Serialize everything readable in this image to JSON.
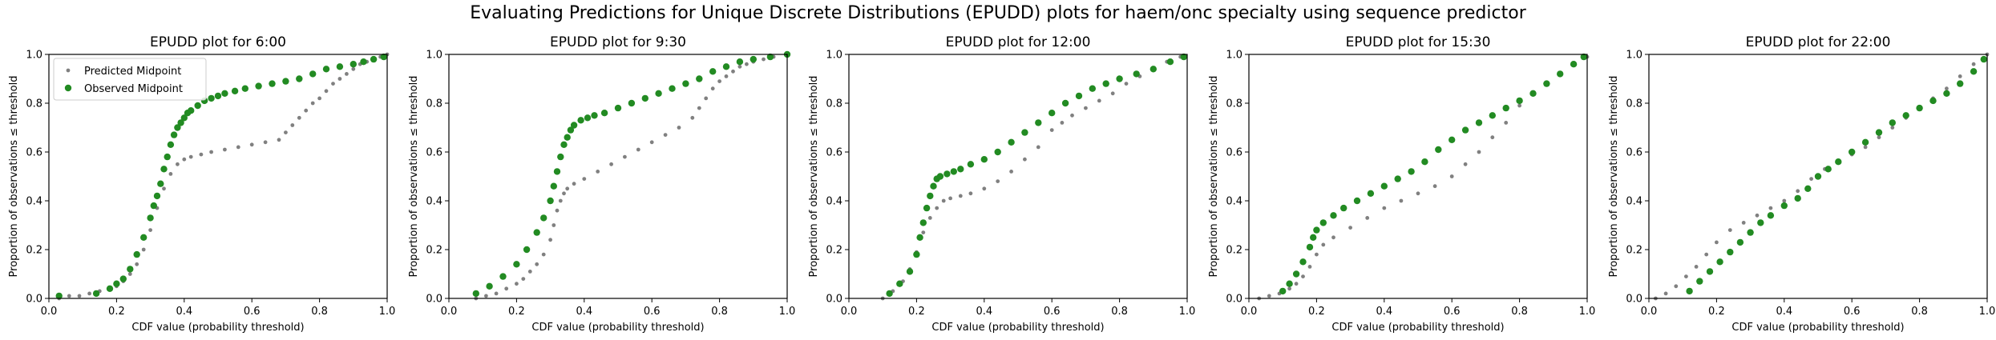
{
  "figure": {
    "suptitle": "Evaluating Predictions for Unique Discrete Distributions (EPUDD) plots for haem/onc specialty using sequence predictor"
  },
  "colors": {
    "predicted": "#808080",
    "observed": "#228B22"
  },
  "chart_data": [
    {
      "type": "scatter",
      "title": "EPUDD plot for 6:00",
      "xlabel": "CDF value (probability threshold)",
      "ylabel": "Proportion of observations ≤ threshold",
      "xlim": [
        0,
        1
      ],
      "ylim": [
        0,
        1
      ],
      "xticks": [
        "0.0",
        "0.2",
        "0.4",
        "0.6",
        "0.8",
        "1.0"
      ],
      "yticks": [
        "0.0",
        "0.2",
        "0.4",
        "0.6",
        "0.8",
        "1.0"
      ],
      "grid": false,
      "legend": {
        "position": "top-left",
        "entries": [
          "Predicted Midpoint",
          "Observed Midpoint"
        ]
      },
      "series": [
        {
          "name": "Predicted Midpoint",
          "marker": "small-dot",
          "x": [
            0.03,
            0.06,
            0.09,
            0.12,
            0.15,
            0.18,
            0.2,
            0.22,
            0.24,
            0.26,
            0.28,
            0.3,
            0.32,
            0.34,
            0.36,
            0.38,
            0.4,
            0.42,
            0.45,
            0.48,
            0.52,
            0.56,
            0.6,
            0.64,
            0.68,
            0.7,
            0.72,
            0.74,
            0.76,
            0.78,
            0.8,
            0.82,
            0.84,
            0.86,
            0.88,
            0.9,
            0.92,
            0.94,
            0.96,
            0.98,
            1.0
          ],
          "y": [
            0.0,
            0.01,
            0.01,
            0.02,
            0.03,
            0.04,
            0.05,
            0.07,
            0.1,
            0.14,
            0.2,
            0.28,
            0.37,
            0.45,
            0.51,
            0.55,
            0.57,
            0.58,
            0.59,
            0.6,
            0.61,
            0.62,
            0.63,
            0.64,
            0.65,
            0.68,
            0.71,
            0.74,
            0.77,
            0.8,
            0.82,
            0.85,
            0.88,
            0.9,
            0.92,
            0.94,
            0.96,
            0.97,
            0.98,
            0.99,
            1.0
          ]
        },
        {
          "name": "Observed Midpoint",
          "marker": "dot",
          "x": [
            0.03,
            0.14,
            0.18,
            0.2,
            0.22,
            0.24,
            0.26,
            0.28,
            0.3,
            0.31,
            0.32,
            0.33,
            0.34,
            0.35,
            0.36,
            0.37,
            0.38,
            0.39,
            0.4,
            0.41,
            0.42,
            0.44,
            0.46,
            0.48,
            0.5,
            0.52,
            0.55,
            0.58,
            0.62,
            0.66,
            0.7,
            0.74,
            0.78,
            0.82,
            0.86,
            0.9,
            0.93,
            0.96,
            0.99
          ],
          "y": [
            0.01,
            0.02,
            0.04,
            0.06,
            0.08,
            0.12,
            0.18,
            0.25,
            0.33,
            0.38,
            0.42,
            0.47,
            0.53,
            0.58,
            0.63,
            0.67,
            0.7,
            0.72,
            0.74,
            0.76,
            0.77,
            0.79,
            0.81,
            0.82,
            0.83,
            0.84,
            0.85,
            0.86,
            0.87,
            0.88,
            0.89,
            0.9,
            0.92,
            0.94,
            0.95,
            0.96,
            0.97,
            0.98,
            0.99
          ]
        }
      ]
    },
    {
      "type": "scatter",
      "title": "EPUDD plot for 9:30",
      "xlabel": "CDF value (probability threshold)",
      "ylabel": "Proportion of observations ≤ threshold",
      "xlim": [
        0,
        1
      ],
      "ylim": [
        0,
        1
      ],
      "xticks": [
        "0.0",
        "0.2",
        "0.4",
        "0.6",
        "0.8",
        "1.0"
      ],
      "yticks": [
        "0.0",
        "0.2",
        "0.4",
        "0.6",
        "0.8",
        "1.0"
      ],
      "grid": false,
      "series": [
        {
          "name": "Predicted Midpoint",
          "marker": "small-dot",
          "x": [
            0.08,
            0.11,
            0.14,
            0.17,
            0.2,
            0.22,
            0.24,
            0.26,
            0.28,
            0.3,
            0.31,
            0.32,
            0.33,
            0.34,
            0.35,
            0.37,
            0.4,
            0.44,
            0.48,
            0.52,
            0.56,
            0.6,
            0.64,
            0.68,
            0.72,
            0.74,
            0.76,
            0.78,
            0.8,
            0.82,
            0.84,
            0.86,
            0.88,
            0.9,
            0.93,
            0.96,
            1.0
          ],
          "y": [
            0.0,
            0.01,
            0.02,
            0.04,
            0.06,
            0.08,
            0.11,
            0.14,
            0.18,
            0.24,
            0.3,
            0.36,
            0.4,
            0.43,
            0.45,
            0.47,
            0.49,
            0.52,
            0.55,
            0.58,
            0.61,
            0.64,
            0.67,
            0.7,
            0.74,
            0.78,
            0.82,
            0.86,
            0.89,
            0.91,
            0.93,
            0.95,
            0.96,
            0.97,
            0.98,
            0.99,
            1.0
          ]
        },
        {
          "name": "Observed Midpoint",
          "marker": "dot",
          "x": [
            0.08,
            0.12,
            0.16,
            0.2,
            0.23,
            0.26,
            0.28,
            0.3,
            0.31,
            0.32,
            0.33,
            0.34,
            0.35,
            0.36,
            0.37,
            0.39,
            0.41,
            0.43,
            0.46,
            0.5,
            0.54,
            0.58,
            0.62,
            0.66,
            0.7,
            0.74,
            0.78,
            0.82,
            0.86,
            0.9,
            0.95,
            1.0
          ],
          "y": [
            0.02,
            0.05,
            0.09,
            0.14,
            0.2,
            0.27,
            0.33,
            0.4,
            0.46,
            0.52,
            0.58,
            0.63,
            0.66,
            0.69,
            0.71,
            0.73,
            0.74,
            0.75,
            0.76,
            0.78,
            0.8,
            0.82,
            0.84,
            0.86,
            0.88,
            0.9,
            0.93,
            0.95,
            0.97,
            0.98,
            0.99,
            1.0
          ]
        }
      ]
    },
    {
      "type": "scatter",
      "title": "EPUDD plot for 12:00",
      "xlabel": "CDF value (probability threshold)",
      "ylabel": "Proportion of observations ≤ threshold",
      "xlim": [
        0,
        1
      ],
      "ylim": [
        0,
        1
      ],
      "xticks": [
        "0.0",
        "0.2",
        "0.4",
        "0.6",
        "0.8",
        "1.0"
      ],
      "yticks": [
        "0.0",
        "0.2",
        "0.4",
        "0.6",
        "0.8",
        "1.0"
      ],
      "grid": false,
      "series": [
        {
          "name": "Predicted Midpoint",
          "marker": "small-dot",
          "x": [
            0.1,
            0.13,
            0.16,
            0.18,
            0.2,
            0.22,
            0.24,
            0.26,
            0.28,
            0.3,
            0.33,
            0.36,
            0.4,
            0.44,
            0.48,
            0.52,
            0.56,
            0.6,
            0.63,
            0.66,
            0.7,
            0.74,
            0.78,
            0.82,
            0.86,
            0.9,
            0.94,
            0.98
          ],
          "y": [
            0.0,
            0.03,
            0.07,
            0.12,
            0.19,
            0.27,
            0.33,
            0.37,
            0.4,
            0.41,
            0.42,
            0.43,
            0.45,
            0.48,
            0.52,
            0.57,
            0.62,
            0.69,
            0.72,
            0.75,
            0.78,
            0.81,
            0.84,
            0.88,
            0.91,
            0.94,
            0.97,
            0.99
          ]
        },
        {
          "name": "Observed Midpoint",
          "marker": "dot",
          "x": [
            0.12,
            0.15,
            0.18,
            0.2,
            0.21,
            0.22,
            0.23,
            0.24,
            0.25,
            0.26,
            0.27,
            0.29,
            0.31,
            0.33,
            0.36,
            0.4,
            0.44,
            0.48,
            0.52,
            0.56,
            0.6,
            0.64,
            0.68,
            0.72,
            0.76,
            0.8,
            0.85,
            0.9,
            0.95,
            0.99
          ],
          "y": [
            0.02,
            0.06,
            0.11,
            0.18,
            0.25,
            0.31,
            0.37,
            0.42,
            0.46,
            0.49,
            0.5,
            0.51,
            0.52,
            0.53,
            0.55,
            0.57,
            0.6,
            0.64,
            0.68,
            0.72,
            0.76,
            0.8,
            0.83,
            0.86,
            0.88,
            0.9,
            0.92,
            0.94,
            0.97,
            0.99
          ]
        }
      ]
    },
    {
      "type": "scatter",
      "title": "EPUDD plot for 15:30",
      "xlabel": "CDF value (probability threshold)",
      "ylabel": "Proportion of observations ≤ threshold",
      "xlim": [
        0,
        1
      ],
      "ylim": [
        0,
        1
      ],
      "xticks": [
        "0.0",
        "0.2",
        "0.4",
        "0.6",
        "0.8",
        "1.0"
      ],
      "yticks": [
        "0.0",
        "0.2",
        "0.4",
        "0.6",
        "0.8",
        "1.0"
      ],
      "grid": false,
      "series": [
        {
          "name": "Predicted Midpoint",
          "marker": "small-dot",
          "x": [
            0.03,
            0.06,
            0.09,
            0.12,
            0.14,
            0.16,
            0.18,
            0.2,
            0.22,
            0.25,
            0.3,
            0.35,
            0.4,
            0.45,
            0.5,
            0.55,
            0.6,
            0.64,
            0.68,
            0.72,
            0.76,
            0.8,
            0.84,
            0.88,
            0.92,
            0.96,
            1.0
          ],
          "y": [
            0.0,
            0.01,
            0.02,
            0.04,
            0.06,
            0.09,
            0.13,
            0.18,
            0.22,
            0.25,
            0.29,
            0.33,
            0.37,
            0.4,
            0.43,
            0.46,
            0.5,
            0.55,
            0.6,
            0.66,
            0.72,
            0.79,
            0.84,
            0.88,
            0.92,
            0.96,
            0.99
          ]
        },
        {
          "name": "Observed Midpoint",
          "marker": "dot",
          "x": [
            0.1,
            0.12,
            0.14,
            0.16,
            0.18,
            0.19,
            0.2,
            0.22,
            0.25,
            0.28,
            0.32,
            0.36,
            0.4,
            0.44,
            0.48,
            0.52,
            0.56,
            0.6,
            0.64,
            0.68,
            0.72,
            0.76,
            0.8,
            0.84,
            0.88,
            0.92,
            0.96,
            0.99
          ],
          "y": [
            0.03,
            0.06,
            0.1,
            0.15,
            0.21,
            0.25,
            0.28,
            0.31,
            0.34,
            0.37,
            0.4,
            0.43,
            0.46,
            0.49,
            0.52,
            0.56,
            0.61,
            0.65,
            0.69,
            0.72,
            0.75,
            0.78,
            0.81,
            0.84,
            0.88,
            0.92,
            0.96,
            0.99
          ]
        }
      ]
    },
    {
      "type": "scatter",
      "title": "EPUDD plot for 22:00",
      "xlabel": "CDF value (probability threshold)",
      "ylabel": "Proportion of observations ≤ threshold",
      "xlim": [
        0,
        1
      ],
      "ylim": [
        0,
        1
      ],
      "xticks": [
        "0.0",
        "0.2",
        "0.4",
        "0.6",
        "0.8",
        "1.0"
      ],
      "yticks": [
        "0.0",
        "0.2",
        "0.4",
        "0.6",
        "0.8",
        "1.0"
      ],
      "grid": false,
      "series": [
        {
          "name": "Predicted Midpoint",
          "marker": "small-dot",
          "x": [
            0.02,
            0.05,
            0.08,
            0.11,
            0.14,
            0.17,
            0.2,
            0.24,
            0.28,
            0.32,
            0.36,
            0.4,
            0.44,
            0.48,
            0.52,
            0.56,
            0.6,
            0.64,
            0.68,
            0.72,
            0.76,
            0.8,
            0.84,
            0.88,
            0.92,
            0.96,
            1.0
          ],
          "y": [
            0.0,
            0.02,
            0.05,
            0.09,
            0.13,
            0.18,
            0.23,
            0.28,
            0.31,
            0.34,
            0.37,
            0.4,
            0.44,
            0.49,
            0.53,
            0.56,
            0.59,
            0.62,
            0.66,
            0.7,
            0.74,
            0.78,
            0.82,
            0.86,
            0.91,
            0.96,
            1.0
          ]
        },
        {
          "name": "Observed Midpoint",
          "marker": "dot",
          "x": [
            0.12,
            0.15,
            0.18,
            0.21,
            0.24,
            0.27,
            0.3,
            0.33,
            0.36,
            0.4,
            0.44,
            0.47,
            0.5,
            0.53,
            0.56,
            0.6,
            0.64,
            0.68,
            0.72,
            0.76,
            0.8,
            0.84,
            0.88,
            0.92,
            0.96,
            0.99
          ],
          "y": [
            0.03,
            0.07,
            0.11,
            0.15,
            0.19,
            0.23,
            0.27,
            0.31,
            0.34,
            0.38,
            0.41,
            0.45,
            0.5,
            0.53,
            0.56,
            0.6,
            0.64,
            0.68,
            0.72,
            0.75,
            0.78,
            0.81,
            0.84,
            0.88,
            0.93,
            0.98
          ]
        }
      ]
    }
  ]
}
